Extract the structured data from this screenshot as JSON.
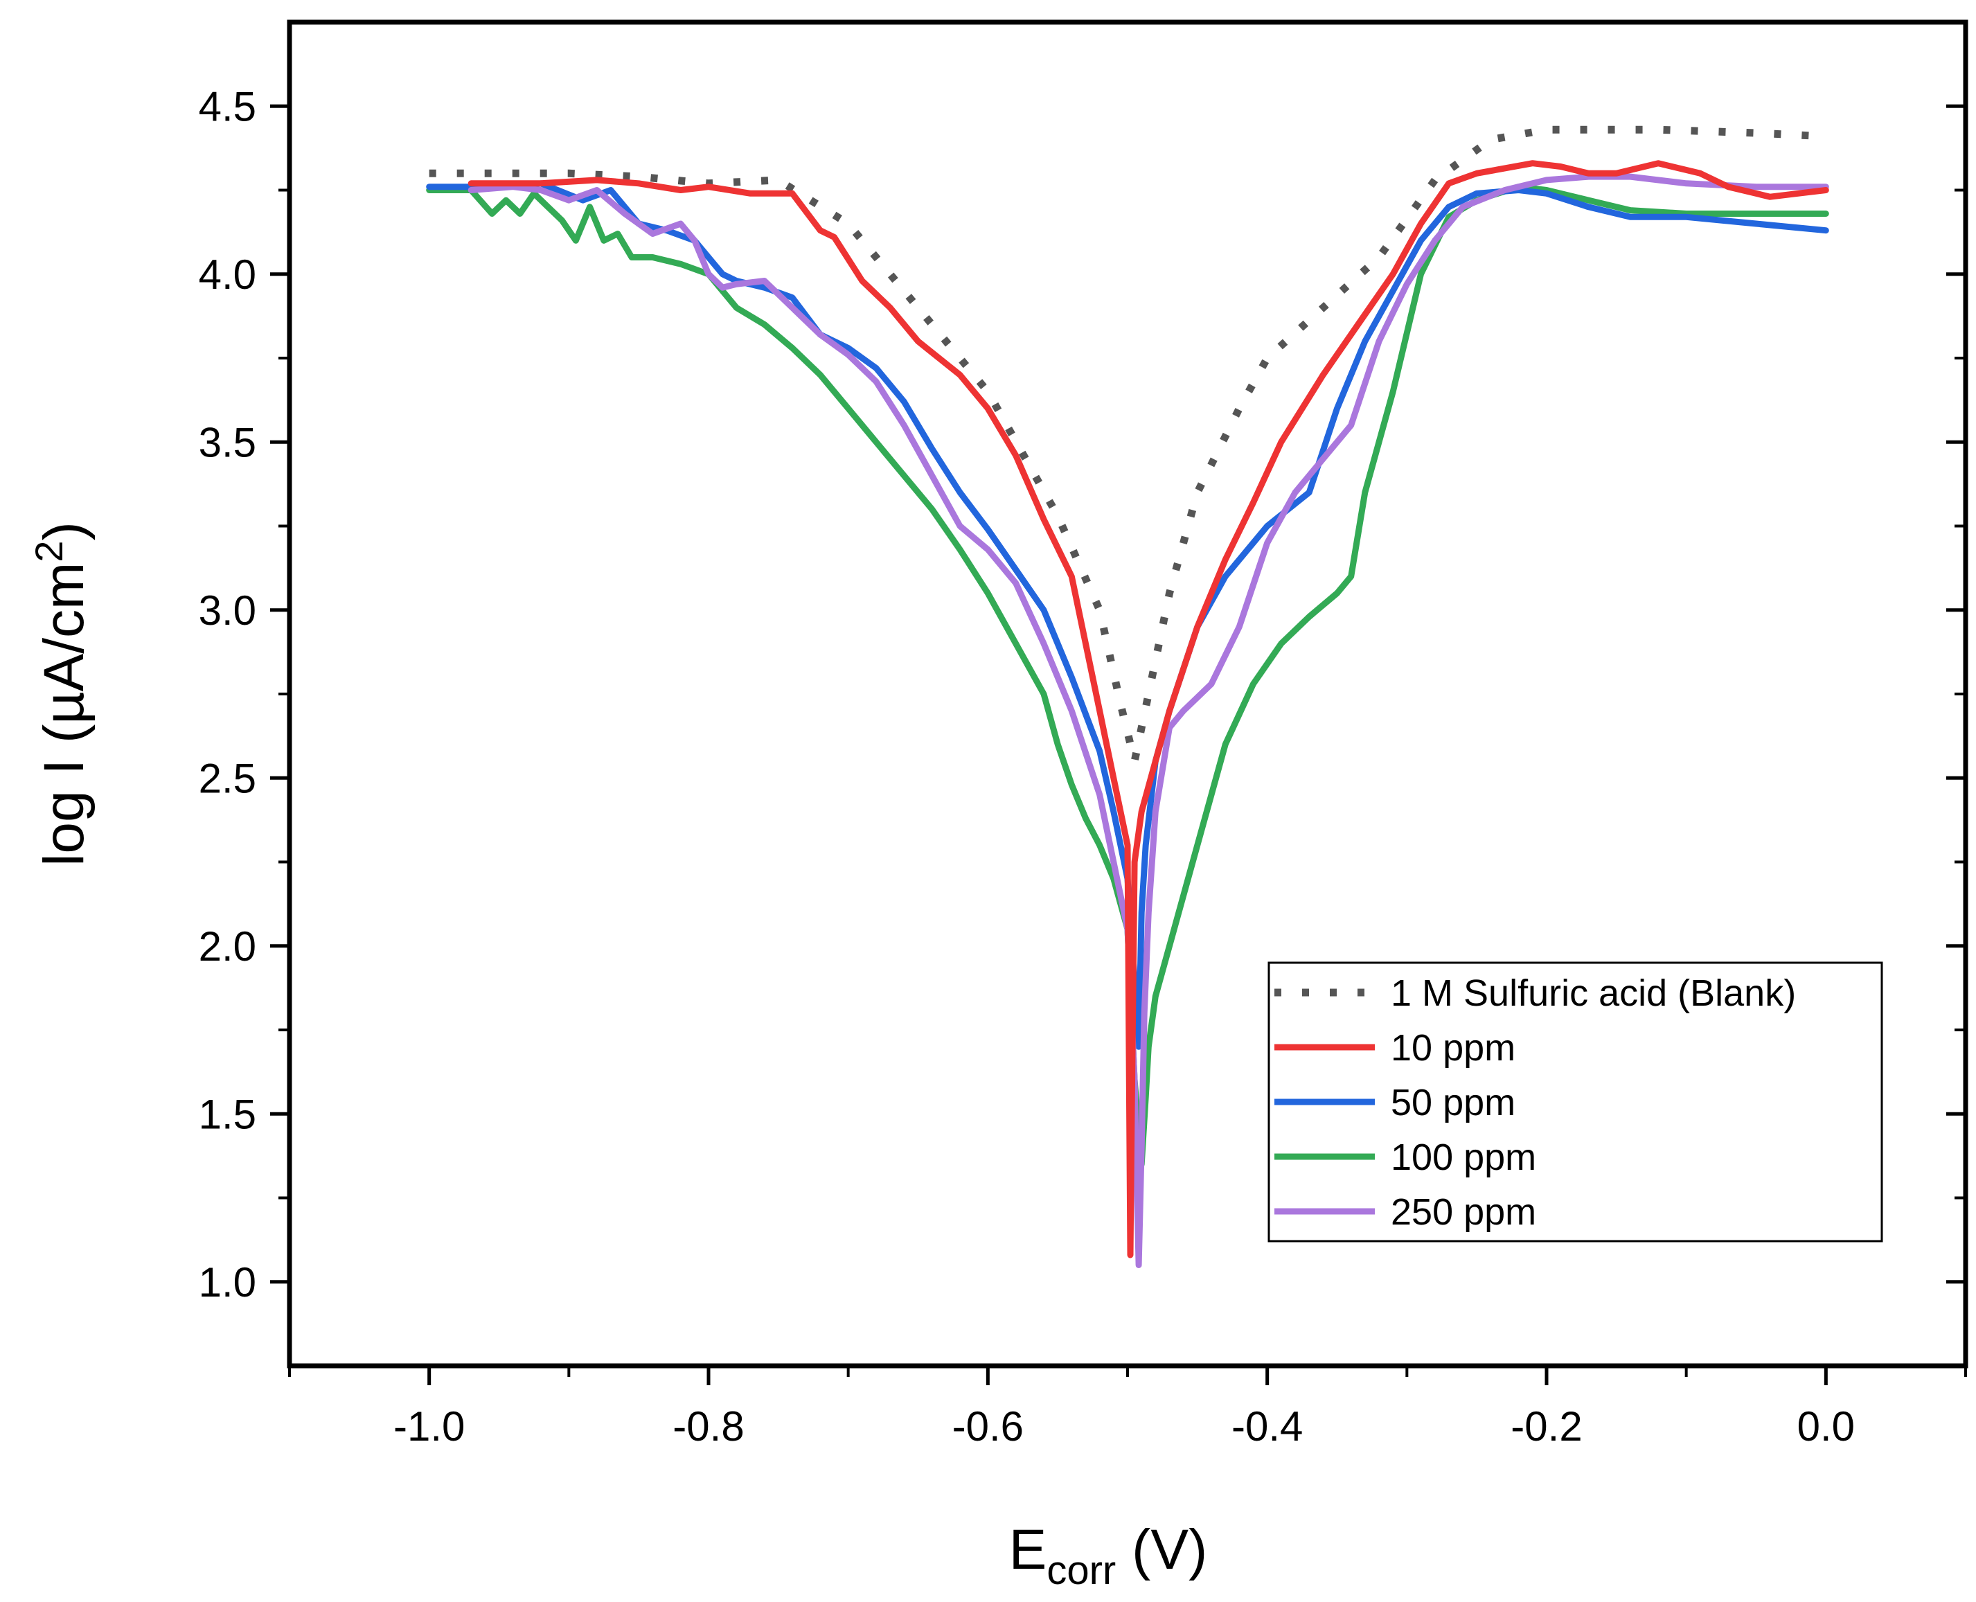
{
  "chart_data": {
    "type": "line",
    "title": "",
    "xlabel": {
      "main": "E",
      "sub": "corr",
      "unit": " (V)"
    },
    "ylabel": {
      "main": "log I (µA/cm",
      "sup": "2",
      "end": ")"
    },
    "xlim": [
      -1.1,
      0.1
    ],
    "ylim": [
      0.75,
      4.75
    ],
    "xticks": [
      -1.0,
      -0.8,
      -0.6,
      -0.4,
      -0.2,
      0.0
    ],
    "xtick_labels": [
      "-1.0",
      "-0.8",
      "-0.6",
      "-0.4",
      "-0.2",
      "0.0"
    ],
    "yticks": [
      1.0,
      1.5,
      2.0,
      2.5,
      3.0,
      3.5,
      4.0,
      4.5
    ],
    "ytick_labels": [
      "1.0",
      "1.5",
      "2.0",
      "2.5",
      "3.0",
      "3.5",
      "4.0",
      "4.5"
    ],
    "legend_position": "bottom-right",
    "series": [
      {
        "name": "1 M Sulfuric acid (Blank)",
        "color": "#555555",
        "style": "dotted",
        "x": [
          -1.0,
          -0.9,
          -0.85,
          -0.8,
          -0.75,
          -0.7,
          -0.65,
          -0.6,
          -0.55,
          -0.52,
          -0.505,
          -0.495,
          -0.485,
          -0.47,
          -0.45,
          -0.42,
          -0.4,
          -0.36,
          -0.32,
          -0.28,
          -0.24,
          -0.2,
          -0.12,
          -0.05,
          0.0
        ],
        "y": [
          4.3,
          4.3,
          4.29,
          4.27,
          4.28,
          4.15,
          3.9,
          3.65,
          3.28,
          3.0,
          2.72,
          2.55,
          2.75,
          3.05,
          3.35,
          3.6,
          3.75,
          3.9,
          4.05,
          4.28,
          4.4,
          4.43,
          4.43,
          4.42,
          4.41
        ]
      },
      {
        "name": "10 ppm",
        "color": "#ee3333",
        "style": "solid",
        "x": [
          -0.97,
          -0.92,
          -0.88,
          -0.85,
          -0.82,
          -0.8,
          -0.77,
          -0.74,
          -0.72,
          -0.71,
          -0.69,
          -0.67,
          -0.65,
          -0.62,
          -0.6,
          -0.58,
          -0.56,
          -0.54,
          -0.53,
          -0.52,
          -0.51,
          -0.5,
          -0.498,
          -0.497,
          -0.495,
          -0.49,
          -0.48,
          -0.47,
          -0.45,
          -0.43,
          -0.41,
          -0.39,
          -0.36,
          -0.33,
          -0.31,
          -0.29,
          -0.27,
          -0.25,
          -0.21,
          -0.19,
          -0.17,
          -0.15,
          -0.12,
          -0.09,
          -0.07,
          -0.04,
          -0.02,
          0.0
        ],
        "y": [
          4.27,
          4.27,
          4.28,
          4.27,
          4.25,
          4.26,
          4.24,
          4.24,
          4.13,
          4.11,
          3.98,
          3.9,
          3.8,
          3.7,
          3.6,
          3.46,
          3.27,
          3.1,
          2.9,
          2.7,
          2.5,
          2.3,
          1.08,
          1.5,
          2.25,
          2.4,
          2.55,
          2.7,
          2.95,
          3.15,
          3.32,
          3.5,
          3.7,
          3.88,
          4.0,
          4.15,
          4.27,
          4.3,
          4.33,
          4.32,
          4.3,
          4.3,
          4.33,
          4.3,
          4.26,
          4.23,
          4.24,
          4.25
        ]
      },
      {
        "name": "50 ppm",
        "color": "#2266dd",
        "style": "solid",
        "x": [
          -1.0,
          -0.95,
          -0.92,
          -0.89,
          -0.87,
          -0.85,
          -0.83,
          -0.81,
          -0.79,
          -0.78,
          -0.76,
          -0.74,
          -0.72,
          -0.7,
          -0.68,
          -0.66,
          -0.64,
          -0.62,
          -0.6,
          -0.58,
          -0.56,
          -0.54,
          -0.52,
          -0.51,
          -0.5,
          -0.495,
          -0.492,
          -0.49,
          -0.487,
          -0.48,
          -0.47,
          -0.45,
          -0.43,
          -0.4,
          -0.37,
          -0.35,
          -0.33,
          -0.31,
          -0.29,
          -0.27,
          -0.25,
          -0.22,
          -0.2,
          -0.17,
          -0.14,
          -0.1,
          -0.05,
          0.0
        ],
        "y": [
          4.26,
          4.26,
          4.27,
          4.22,
          4.25,
          4.15,
          4.13,
          4.1,
          4.0,
          3.98,
          3.96,
          3.93,
          3.82,
          3.78,
          3.72,
          3.62,
          3.48,
          3.35,
          3.24,
          3.12,
          3.0,
          2.8,
          2.58,
          2.4,
          2.2,
          1.9,
          1.7,
          2.1,
          2.3,
          2.55,
          2.7,
          2.95,
          3.1,
          3.25,
          3.35,
          3.6,
          3.8,
          3.95,
          4.1,
          4.2,
          4.24,
          4.25,
          4.24,
          4.2,
          4.17,
          4.17,
          4.15,
          4.13
        ]
      },
      {
        "name": "100 ppm",
        "color": "#33aa55",
        "style": "solid",
        "x": [
          -1.0,
          -0.97,
          -0.955,
          -0.945,
          -0.935,
          -0.925,
          -0.915,
          -0.905,
          -0.895,
          -0.885,
          -0.875,
          -0.865,
          -0.855,
          -0.84,
          -0.82,
          -0.8,
          -0.78,
          -0.76,
          -0.74,
          -0.72,
          -0.7,
          -0.68,
          -0.66,
          -0.64,
          -0.62,
          -0.6,
          -0.58,
          -0.56,
          -0.55,
          -0.54,
          -0.53,
          -0.52,
          -0.51,
          -0.5,
          -0.495,
          -0.49,
          -0.487,
          -0.485,
          -0.48,
          -0.47,
          -0.45,
          -0.43,
          -0.41,
          -0.39,
          -0.37,
          -0.35,
          -0.34,
          -0.33,
          -0.31,
          -0.29,
          -0.27,
          -0.25,
          -0.22,
          -0.2,
          -0.17,
          -0.14,
          -0.1,
          -0.05,
          0.0
        ],
        "y": [
          4.25,
          4.25,
          4.18,
          4.22,
          4.18,
          4.24,
          4.2,
          4.16,
          4.1,
          4.2,
          4.1,
          4.12,
          4.05,
          4.05,
          4.03,
          4.0,
          3.9,
          3.85,
          3.78,
          3.7,
          3.6,
          3.5,
          3.4,
          3.3,
          3.18,
          3.05,
          2.9,
          2.75,
          2.6,
          2.48,
          2.38,
          2.3,
          2.2,
          2.05,
          1.6,
          1.35,
          1.55,
          1.7,
          1.85,
          2.0,
          2.3,
          2.6,
          2.78,
          2.9,
          2.98,
          3.05,
          3.1,
          3.35,
          3.65,
          4.0,
          4.17,
          4.22,
          4.26,
          4.25,
          4.22,
          4.19,
          4.18,
          4.18,
          4.18
        ]
      },
      {
        "name": "250 ppm",
        "color": "#aa77dd",
        "style": "solid",
        "x": [
          -0.97,
          -0.94,
          -0.92,
          -0.9,
          -0.88,
          -0.86,
          -0.84,
          -0.82,
          -0.81,
          -0.8,
          -0.79,
          -0.78,
          -0.76,
          -0.74,
          -0.72,
          -0.7,
          -0.68,
          -0.66,
          -0.64,
          -0.62,
          -0.6,
          -0.58,
          -0.56,
          -0.54,
          -0.52,
          -0.51,
          -0.5,
          -0.495,
          -0.492,
          -0.49,
          -0.488,
          -0.485,
          -0.48,
          -0.47,
          -0.46,
          -0.44,
          -0.42,
          -0.4,
          -0.38,
          -0.36,
          -0.34,
          -0.32,
          -0.3,
          -0.28,
          -0.26,
          -0.23,
          -0.2,
          -0.17,
          -0.14,
          -0.1,
          -0.05,
          0.0
        ],
        "y": [
          4.25,
          4.26,
          4.25,
          4.22,
          4.25,
          4.18,
          4.12,
          4.15,
          4.1,
          4.0,
          3.96,
          3.97,
          3.98,
          3.9,
          3.82,
          3.76,
          3.68,
          3.55,
          3.4,
          3.25,
          3.18,
          3.08,
          2.9,
          2.7,
          2.45,
          2.25,
          2.05,
          1.6,
          1.05,
          1.4,
          1.8,
          2.1,
          2.4,
          2.65,
          2.7,
          2.78,
          2.95,
          3.2,
          3.35,
          3.45,
          3.55,
          3.8,
          3.97,
          4.1,
          4.2,
          4.25,
          4.28,
          4.29,
          4.29,
          4.27,
          4.26,
          4.26
        ]
      }
    ]
  }
}
